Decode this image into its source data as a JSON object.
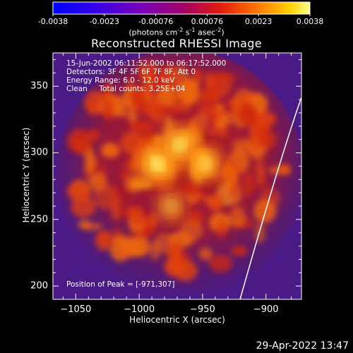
{
  "colorbar": {
    "ticks": [
      "-0.0038",
      "-0.0023",
      "-0.00076",
      "0.00076",
      "0.0023",
      "0.0038"
    ],
    "unit_html": "(photons cm<sup style=\"font-size:8px\">-2</sup> s<sup style=\"font-size:8px\">-1</sup> asec<sup style=\"font-size:8px\">-2</sup>)"
  },
  "chart_data": {
    "type": "heatmap",
    "title": "Reconstructed RHESSI Image",
    "xlabel": "Heliocentric X (arcsec)",
    "ylabel": "Heliocentric Y (arcsec)",
    "xlim": [
      -1068,
      -872
    ],
    "ylim": [
      190,
      375
    ],
    "xticks": [
      -1050,
      -1000,
      -950,
      -900
    ],
    "yticks": [
      200,
      250,
      300,
      350
    ],
    "xtick_labels": [
      "−1050",
      "−1000",
      "−950",
      "−900"
    ],
    "ytick_labels": [
      "200",
      "250",
      "300",
      "350"
    ],
    "colorbar_range": [
      -0.0038,
      0.0038
    ],
    "colormap": "hot-purple",
    "sources": [
      {
        "x": -985,
        "y": 292,
        "peak": 1.0
      },
      {
        "x": -968,
        "y": 306,
        "peak": 0.85
      },
      {
        "x": -948,
        "y": 292,
        "peak": 0.72
      },
      {
        "x": -975,
        "y": 260,
        "peak": 0.5
      }
    ],
    "peak_position": [
      -971,
      307
    ],
    "limb": "white arc near right edge",
    "annotations": [
      "15-Jun-2002 06:11:52.000 to 06:17:52.000",
      "Detectors: 3F 4F 5F 6F 7F 8F, Att 0",
      "Energy Range: 6.0 - 12.0 keV",
      "Clean     Total counts: 3.25E+04"
    ],
    "peak_label": "Position of Peak = [-971,307]"
  },
  "footer": {
    "timestamp": "29-Apr-2022 13:47"
  }
}
